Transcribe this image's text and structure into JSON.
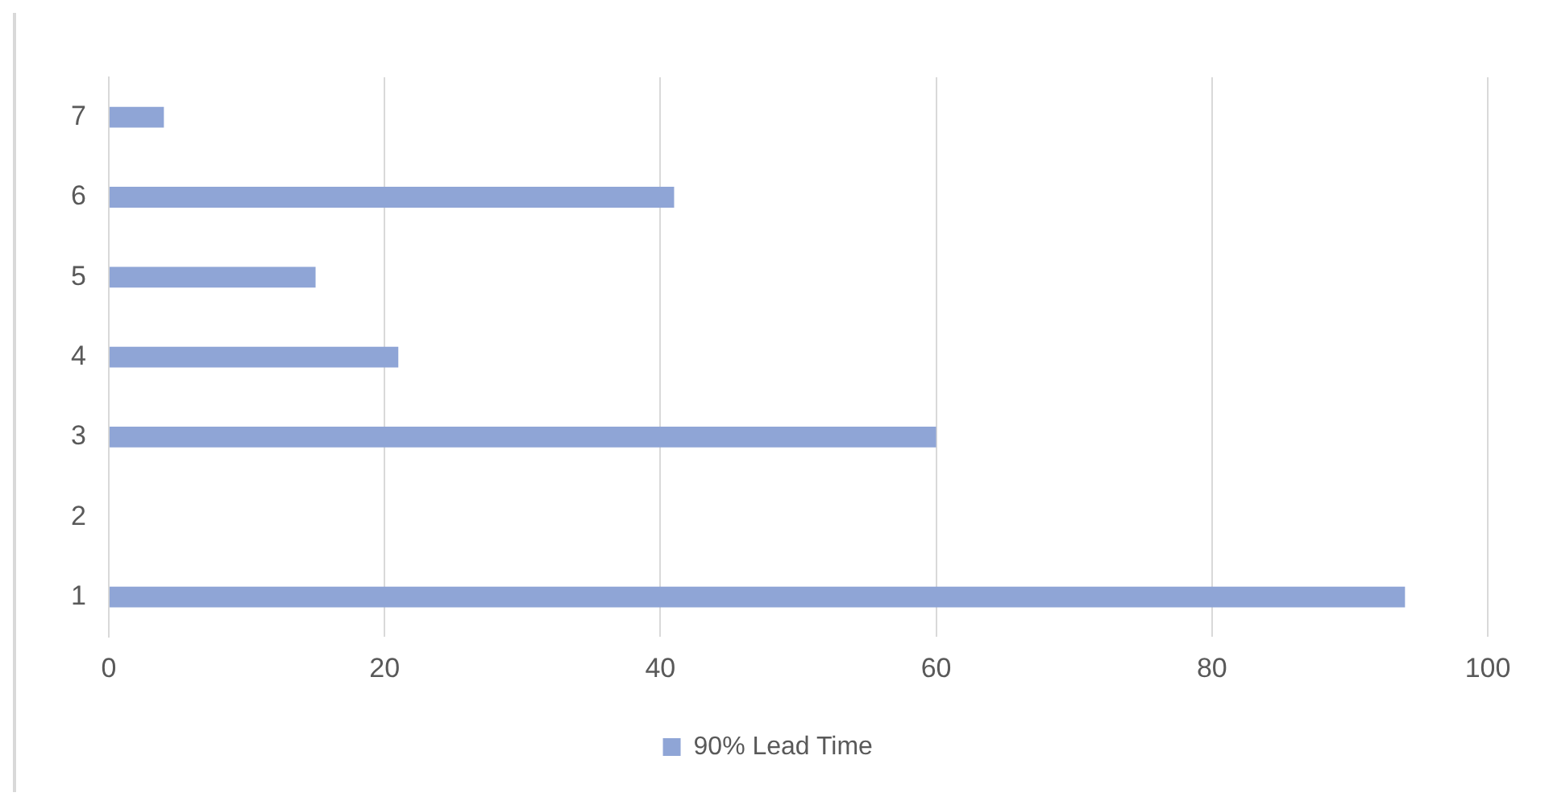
{
  "chart_data": {
    "type": "bar",
    "orientation": "horizontal",
    "categories": [
      "7",
      "6",
      "5",
      "4",
      "3",
      "2",
      "1"
    ],
    "series": [
      {
        "name": "90% Lead Time",
        "color": "#8fa5d6",
        "values": [
          4,
          41,
          15,
          21,
          60,
          null,
          94
        ]
      }
    ],
    "xlim": [
      0,
      100
    ],
    "xticks": [
      0,
      20,
      40,
      60,
      80,
      100
    ],
    "grid": "x",
    "legend": "bottom"
  }
}
